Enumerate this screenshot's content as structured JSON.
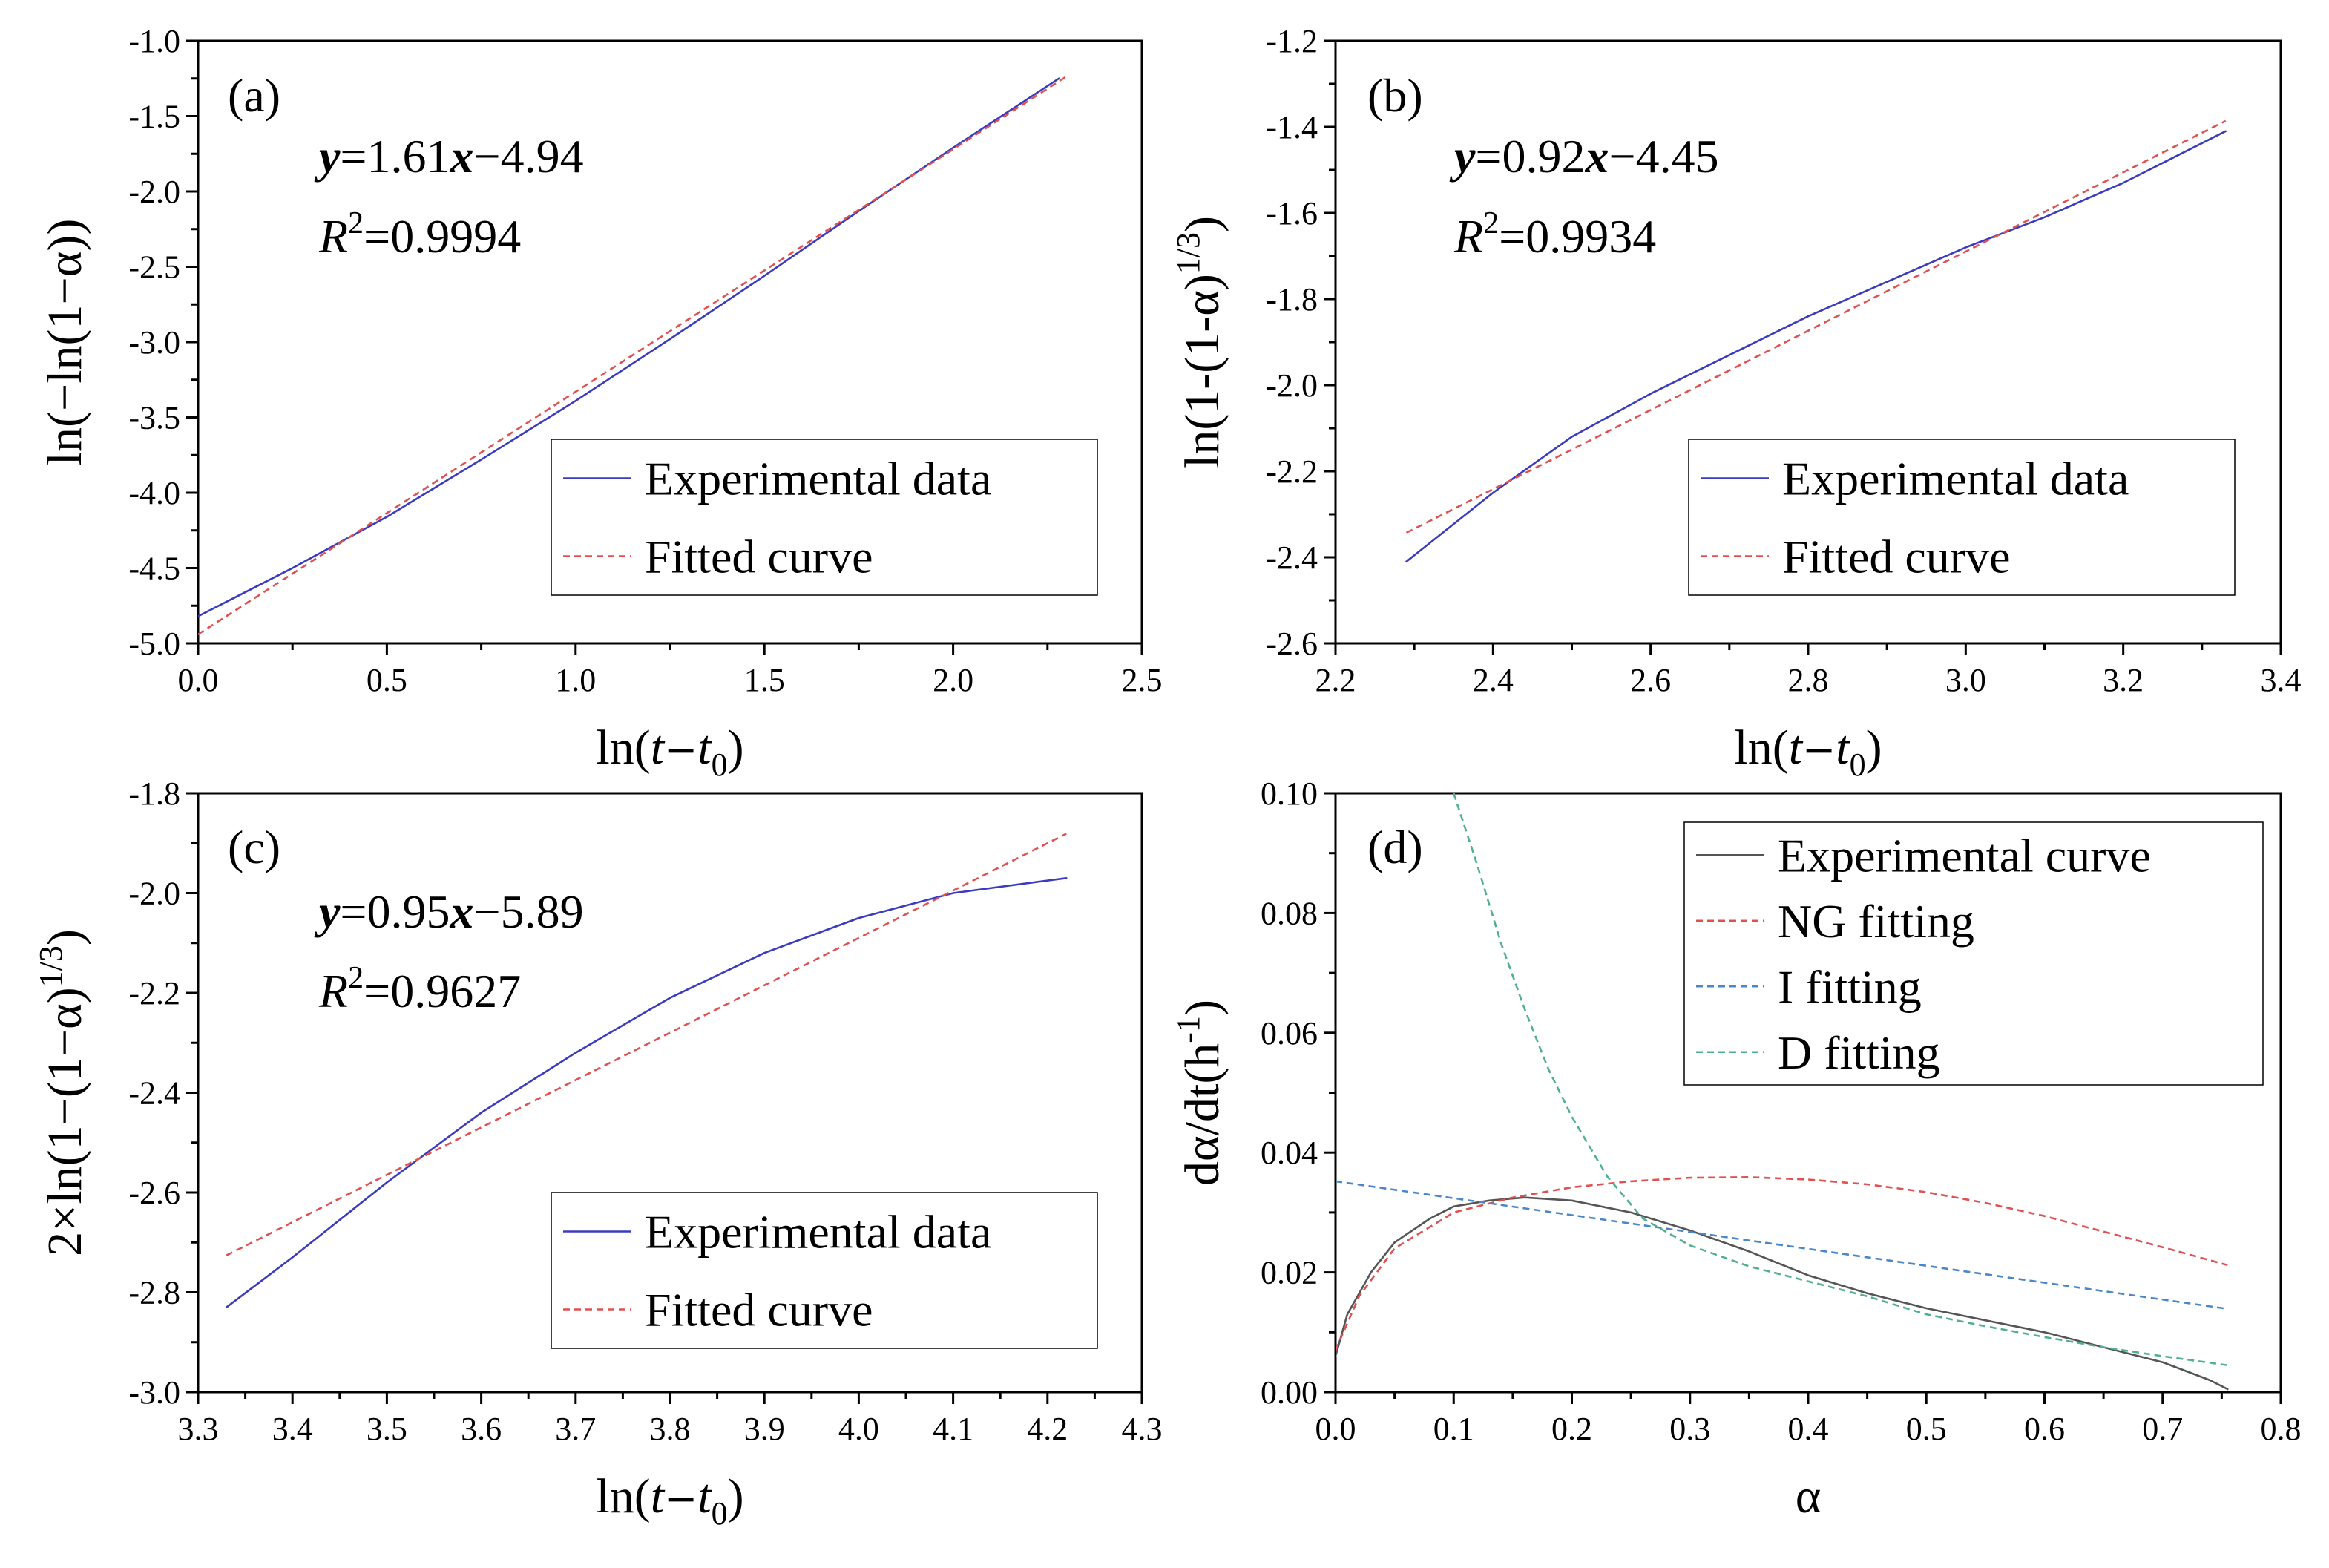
{
  "chart_data": [
    {
      "type": "line",
      "panel_label": "(a)",
      "xlabel_parts": [
        "ln(",
        "t",
        "−",
        "t",
        "0",
        ")"
      ],
      "ylabel": "ln(−ln(1−α))",
      "xlim": [
        0.0,
        2.5
      ],
      "ylim": [
        -5.0,
        -1.0
      ],
      "xticks": [
        "0.0",
        "0.5",
        "1.0",
        "1.5",
        "2.0",
        "2.5"
      ],
      "yticks": [
        "-5.0",
        "-4.5",
        "-4.0",
        "-3.5",
        "-3.0",
        "-2.5",
        "-2.0",
        "-1.5",
        "-1.0"
      ],
      "equation": {
        "y": "y",
        "eq": "=1.61",
        "x": "x",
        "rest": "−4.94"
      },
      "r2": {
        "R": "R",
        "exp": "2",
        "val": "=0.9994"
      },
      "legend": [
        "Experimental data",
        "Fitted curve"
      ],
      "series": [
        {
          "name": "Experimental data",
          "color": "#3b3bbf",
          "style": "solid",
          "x": [
            0.0,
            0.25,
            0.5,
            0.75,
            1.0,
            1.25,
            1.5,
            1.75,
            2.0,
            2.28
          ],
          "y": [
            -4.82,
            -4.5,
            -4.16,
            -3.78,
            -3.39,
            -2.98,
            -2.56,
            -2.13,
            -1.71,
            -1.25
          ]
        },
        {
          "name": "Fitted curve",
          "color": "#e05050",
          "style": "dashed",
          "x": [
            0.0,
            2.3
          ],
          "y": [
            -4.94,
            -1.237
          ]
        }
      ]
    },
    {
      "type": "line",
      "panel_label": "(b)",
      "xlabel_parts": [
        "ln(",
        "t",
        "−",
        "t",
        "0",
        ")"
      ],
      "ylabel_main": "ln(1-(1-α)",
      "ylabel_sup": "1/3",
      "ylabel_end": ")",
      "xlim": [
        2.2,
        3.4
      ],
      "ylim": [
        -2.6,
        -1.2
      ],
      "xticks": [
        "2.2",
        "2.4",
        "2.6",
        "2.8",
        "3.0",
        "3.2",
        "3.4"
      ],
      "yticks": [
        "-2.6",
        "-2.4",
        "-2.2",
        "-2.0",
        "-1.8",
        "-1.6",
        "-1.4",
        "-1.2"
      ],
      "equation": {
        "y": "y",
        "eq": "=0.92",
        "x": "x",
        "rest": "−4.45"
      },
      "r2": {
        "R": "R",
        "exp": "2",
        "val": "=0.9934"
      },
      "legend": [
        "Experimental data",
        "Fitted curve"
      ],
      "series": [
        {
          "name": "Experimental data",
          "color": "#3b3bbf",
          "style": "solid",
          "x": [
            2.29,
            2.4,
            2.5,
            2.6,
            2.7,
            2.8,
            2.9,
            3.0,
            3.1,
            3.2,
            3.33
          ],
          "y": [
            -2.41,
            -2.25,
            -2.12,
            -2.02,
            -1.93,
            -1.84,
            -1.76,
            -1.68,
            -1.61,
            -1.53,
            -1.41
          ]
        },
        {
          "name": "Fitted curve",
          "color": "#e05050",
          "style": "dashed",
          "x": [
            2.29,
            3.33
          ],
          "y": [
            -2.343,
            -1.386
          ]
        }
      ]
    },
    {
      "type": "line",
      "panel_label": "(c)",
      "xlabel_parts": [
        "ln(",
        "t",
        "−",
        "t",
        "0",
        ")"
      ],
      "ylabel_main": "2×ln(1−(1−α)",
      "ylabel_sup": "1/3",
      "ylabel_end": ")",
      "xlim": [
        3.3,
        4.3
      ],
      "ylim": [
        -3.0,
        -1.8
      ],
      "xticks": [
        "3.3",
        "3.4",
        "3.5",
        "3.6",
        "3.7",
        "3.8",
        "3.9",
        "4.0",
        "4.1",
        "4.2",
        "4.3"
      ],
      "yticks": [
        "-3.0",
        "-2.8",
        "-2.6",
        "-2.4",
        "-2.2",
        "-2.0",
        "-1.8"
      ],
      "equation": {
        "y": "y",
        "eq": "=0.95",
        "x": "x",
        "rest": "−5.89"
      },
      "r2": {
        "R": "R",
        "exp": "2",
        "val": "=0.9627"
      },
      "legend": [
        "Experimental data",
        "Fitted curve"
      ],
      "series": [
        {
          "name": "Experimental data",
          "color": "#3b3bbf",
          "style": "solid",
          "x": [
            3.33,
            3.4,
            3.5,
            3.6,
            3.7,
            3.8,
            3.9,
            4.0,
            4.1,
            4.22
          ],
          "y": [
            -2.83,
            -2.73,
            -2.58,
            -2.44,
            -2.32,
            -2.21,
            -2.12,
            -2.05,
            -2.0,
            -1.97
          ]
        },
        {
          "name": "Fitted curve",
          "color": "#e05050",
          "style": "dashed",
          "x": [
            3.33,
            4.22
          ],
          "y": [
            -2.726,
            -1.881
          ]
        }
      ]
    },
    {
      "type": "line",
      "panel_label": "(d)",
      "xlabel": "α",
      "ylabel_main": "dα/dt(h",
      "ylabel_sup": "-1",
      "ylabel_end": ")",
      "xlim": [
        0.0,
        0.8
      ],
      "ylim": [
        0.0,
        0.1
      ],
      "xticks": [
        "0.0",
        "0.1",
        "0.2",
        "0.3",
        "0.4",
        "0.5",
        "0.6",
        "0.7",
        "0.8"
      ],
      "yticks": [
        "0.00",
        "0.02",
        "0.04",
        "0.06",
        "0.08",
        "0.10"
      ],
      "legend": [
        "Experimental curve",
        "NG fitting",
        "I fitting",
        "D fitting"
      ],
      "series": [
        {
          "name": "Experimental curve",
          "color": "#555555",
          "style": "solid",
          "x": [
            0.0,
            0.01,
            0.03,
            0.05,
            0.08,
            0.1,
            0.13,
            0.16,
            0.2,
            0.25,
            0.3,
            0.35,
            0.4,
            0.45,
            0.5,
            0.55,
            0.6,
            0.65,
            0.7,
            0.74,
            0.755
          ],
          "y": [
            0.006,
            0.013,
            0.02,
            0.025,
            0.029,
            0.031,
            0.032,
            0.0325,
            0.032,
            0.03,
            0.027,
            0.0235,
            0.0195,
            0.0165,
            0.014,
            0.012,
            0.01,
            0.0075,
            0.005,
            0.002,
            0.0005
          ]
        },
        {
          "name": "NG fitting",
          "color": "#e05050",
          "style": "dashed",
          "x": [
            0.0,
            0.02,
            0.05,
            0.1,
            0.15,
            0.2,
            0.25,
            0.3,
            0.35,
            0.4,
            0.45,
            0.5,
            0.55,
            0.6,
            0.65,
            0.7,
            0.755
          ],
          "y": [
            0.007,
            0.016,
            0.024,
            0.03,
            0.0325,
            0.0342,
            0.0352,
            0.0358,
            0.0359,
            0.0355,
            0.0347,
            0.0334,
            0.0316,
            0.0294,
            0.0268,
            0.0242,
            0.0212
          ]
        },
        {
          "name": "I fitting",
          "color": "#4a86c8",
          "style": "dashed",
          "x": [
            0.0,
            0.755
          ],
          "y": [
            0.0352,
            0.0139
          ]
        },
        {
          "name": "D fitting",
          "color": "#4fae94",
          "style": "dashed",
          "x": [
            0.1,
            0.12,
            0.14,
            0.16,
            0.18,
            0.2,
            0.23,
            0.26,
            0.3,
            0.35,
            0.4,
            0.45,
            0.5,
            0.55,
            0.6,
            0.65,
            0.7,
            0.755
          ],
          "y": [
            0.1,
            0.088,
            0.075,
            0.064,
            0.054,
            0.046,
            0.036,
            0.029,
            0.0245,
            0.021,
            0.0185,
            0.016,
            0.013,
            0.011,
            0.0092,
            0.0075,
            0.006,
            0.0045
          ]
        }
      ]
    }
  ]
}
